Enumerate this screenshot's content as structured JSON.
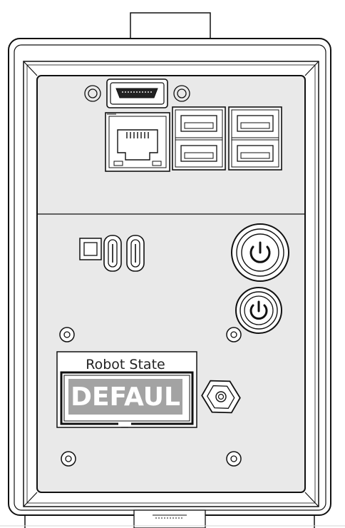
{
  "robot_state": {
    "label": "Robot State",
    "value": "DEFAUL"
  },
  "colors": {
    "panel_fill": "#e9e9e9",
    "outline": "#111111",
    "display_fill": "#a3a3a3",
    "display_text": "#ffffff"
  },
  "ports": {
    "hdmi": "hdmi-port",
    "ethernet": "ethernet-port",
    "usb_a_count": 4,
    "usb_c_count": 2,
    "power_buttons": 2
  }
}
